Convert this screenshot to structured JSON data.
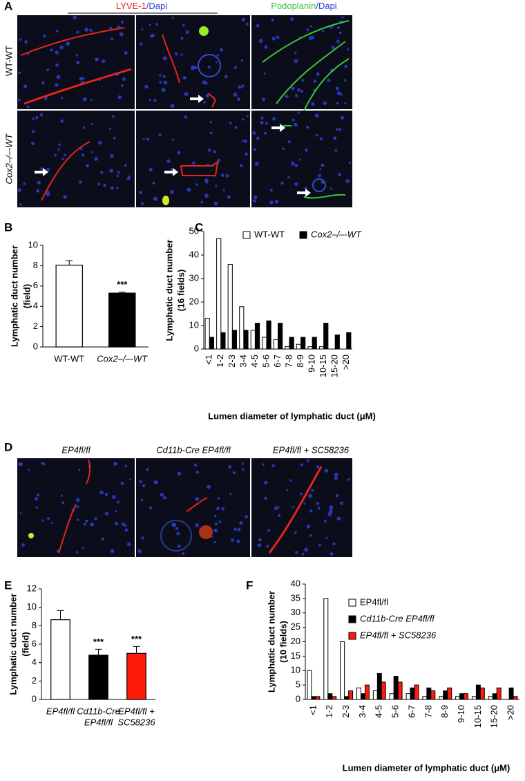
{
  "figure": {
    "panel_labels": [
      "A",
      "B",
      "C",
      "D",
      "E",
      "F"
    ],
    "panel_a": {
      "lyve_marker": "LYVE-1",
      "lyve_counter": "/Dapi",
      "podo_marker": "Podoplanin",
      "podo_counter": "/Dapi",
      "rows": [
        "WT-WT",
        "Cox2–/–-WT"
      ]
    },
    "panel_d": {
      "columns": [
        "EP4fl/fl",
        "Cd11b-Cre EP4fl/fl",
        "EP4fl/fl + SC58236"
      ]
    }
  },
  "chart_data": [
    {
      "type": "bar",
      "y_label": [
        "Lymphatic duct number",
        "(field)"
      ],
      "categories": [
        "WT-WT",
        "Cox2–/–-WT"
      ],
      "values": [
        8.05,
        5.3
      ],
      "errors": [
        0.45,
        0.1
      ],
      "colors": [
        "#ffffff",
        "#000000"
      ],
      "annotations": [
        null,
        "***"
      ],
      "ylim": [
        0,
        10
      ],
      "yticks": [
        0,
        2,
        4,
        6,
        8,
        10
      ]
    },
    {
      "type": "bar",
      "y_label": [
        "Lymphatic duct number",
        "(16 fields)"
      ],
      "x_label": "Lumen diameter of lymphatic duct (μM)",
      "categories": [
        "<1",
        "1-2",
        "2-3",
        "3-4",
        "4-5",
        "5-6",
        "6-7",
        "7-8",
        "8-9",
        "9-10",
        "10-15",
        "15-20",
        ">20"
      ],
      "series": [
        {
          "name": "WT-WT",
          "color": "#ffffff",
          "values": [
            13,
            47,
            36,
            18,
            8,
            5,
            4,
            1,
            2,
            1,
            1,
            0,
            0
          ]
        },
        {
          "name": "Cox2–/–-WT",
          "color": "#000000",
          "values": [
            5,
            7,
            8,
            8,
            11,
            12,
            11,
            5,
            5,
            5,
            11,
            6,
            7
          ]
        }
      ],
      "legend": "upper right",
      "ylim": [
        0,
        50
      ],
      "yticks": [
        0,
        10,
        20,
        30,
        40,
        50
      ]
    },
    {
      "type": "bar",
      "y_label": [
        "Lymphatic duct number",
        "(field)"
      ],
      "categories": [
        [
          "EP4fl/fl"
        ],
        [
          "Cd11b-Cre",
          "EP4fl/fl"
        ],
        [
          "EP4fl/fl +",
          "SC58236"
        ]
      ],
      "values": [
        8.65,
        4.8,
        5.0
      ],
      "errors": [
        1.0,
        0.65,
        0.75
      ],
      "colors": [
        "#ffffff",
        "#000000",
        "#ff1a0a"
      ],
      "annotations": [
        null,
        "***",
        "***"
      ],
      "ylim": [
        0,
        12
      ],
      "yticks": [
        0,
        2,
        4,
        6,
        8,
        10,
        12
      ]
    },
    {
      "type": "bar",
      "y_label": [
        "Lymphatic duct number",
        "(10 fields)"
      ],
      "x_label": "Lumen diameter of lymphatic duct (μM)",
      "categories": [
        "<1",
        "1-2",
        "2-3",
        "3-4",
        "4-5",
        "5-6",
        "6-7",
        "7-8",
        "8-9",
        "9-10",
        "10-15",
        "15-20",
        ">20"
      ],
      "series": [
        {
          "name": "EP4fl/fl",
          "color": "#ffffff",
          "values": [
            10,
            35,
            20,
            4,
            3,
            2,
            2,
            1,
            1,
            1,
            1,
            1,
            0
          ]
        },
        {
          "name": "Cd11b-Cre EP4fl/fl",
          "color": "#000000",
          "values": [
            1,
            2,
            1,
            2,
            9,
            8,
            4,
            4,
            3,
            2,
            5,
            2,
            4
          ]
        },
        {
          "name": "EP4fl/fl + SC58236",
          "color": "#ff1a0a",
          "values": [
            1,
            1,
            3,
            5,
            6,
            6,
            5,
            3,
            4,
            2,
            4,
            4,
            1
          ]
        }
      ],
      "legend": "upper right",
      "ylim": [
        0,
        40
      ],
      "yticks": [
        0,
        5,
        10,
        15,
        20,
        25,
        30,
        35,
        40
      ]
    }
  ]
}
